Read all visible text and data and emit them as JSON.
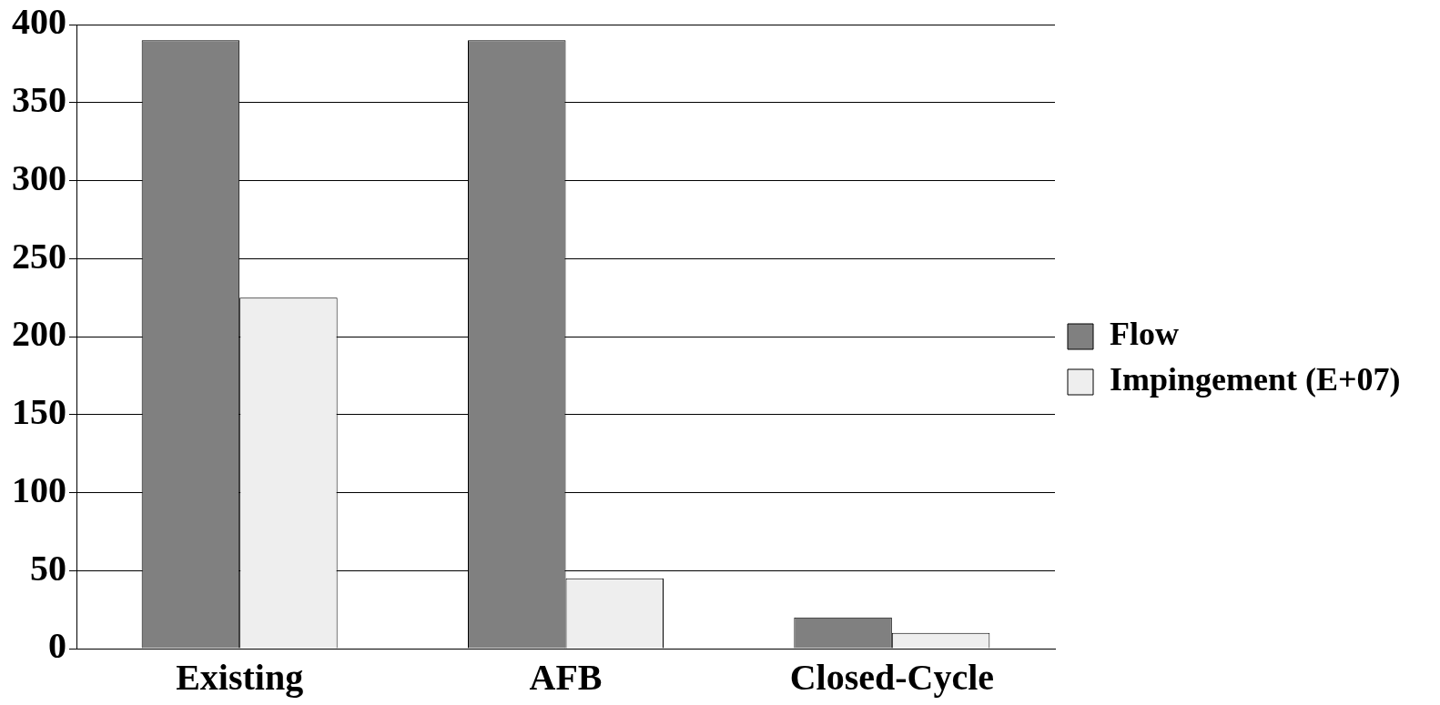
{
  "chart_data": {
    "type": "bar",
    "categories": [
      "Existing",
      "AFB",
      "Closed-Cycle"
    ],
    "series": [
      {
        "name": "Flow",
        "color": "#808080",
        "values": [
          390,
          390,
          20
        ]
      },
      {
        "name": "Impingement (E+07)",
        "color": "#eeeeee",
        "values": [
          225,
          45,
          10
        ]
      }
    ],
    "ylim": [
      0,
      400
    ],
    "yticks": [
      0,
      50,
      100,
      150,
      200,
      250,
      300,
      350,
      400
    ],
    "grid": "y",
    "legend": "right"
  }
}
